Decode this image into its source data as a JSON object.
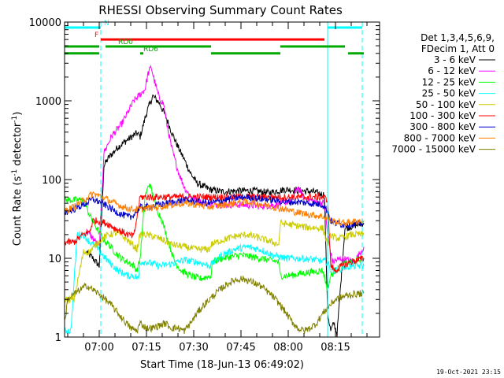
{
  "chart_data": {
    "type": "line",
    "title": "RHESSI Observing Summary Count Rates",
    "xlabel": "Start Time (18-Jun-13 06:49:02)",
    "ylabel_main": "Count Rate (s",
    "ylabel_sup1": "-1",
    "ylabel_mid": " detector",
    "ylabel_sup2": "-1",
    "ylabel_end": ")",
    "x_unit": "minutes since 06:49:02",
    "xlim": [
      0,
      100
    ],
    "ylim": [
      1,
      10000
    ],
    "y_scale": "log",
    "x_ticks": [
      {
        "value": 11,
        "label": "07:00"
      },
      {
        "value": 26,
        "label": "07:15"
      },
      {
        "value": 41,
        "label": "07:30"
      },
      {
        "value": 56,
        "label": "07:45"
      },
      {
        "value": 71,
        "label": "08:00"
      },
      {
        "value": 86,
        "label": "08:15"
      }
    ],
    "y_ticks": [
      {
        "value": 1,
        "label": "1"
      },
      {
        "value": 10,
        "label": "10"
      },
      {
        "value": 100,
        "label": "100"
      },
      {
        "value": 1000,
        "label": "1000"
      },
      {
        "value": 10000,
        "label": "10000"
      }
    ],
    "legend_header": [
      "Det 1,3,4,5,6,9,",
      "FDecim 1, Att 0"
    ],
    "legend_placement": "right",
    "footer_timestamp": "19-Oct-2021 23:15",
    "vertical_markers": [
      {
        "x": 11.5,
        "color": "#00ffff",
        "style": "dashed"
      },
      {
        "x": 83.5,
        "color": "#00ffff",
        "style": "solid"
      },
      {
        "x": 94.5,
        "color": "#00ffff",
        "style": "dashed"
      }
    ],
    "flag_bars": [
      {
        "label": "N",
        "color": "#00ffff",
        "y": 8500,
        "segments": [
          [
            0,
            11.5
          ],
          [
            83.5,
            94.5
          ]
        ],
        "label_x": 12.5
      },
      {
        "label": "F",
        "color": "#ff0000",
        "y": 6000,
        "segments": [
          [
            11.5,
            82.5
          ]
        ],
        "label_x": 9.5
      },
      {
        "label": "RD0",
        "color": "#00aa00",
        "y": 4900,
        "segments": [
          [
            0,
            11
          ],
          [
            13,
            46.5
          ],
          [
            68.5,
            89
          ]
        ],
        "label_x": 17
      },
      {
        "label": "RD6",
        "color": "#00aa00",
        "y": 4000,
        "segments": [
          [
            0,
            11
          ],
          [
            24,
            25
          ],
          [
            46.5,
            68.5
          ],
          [
            90,
            95
          ]
        ],
        "label_x": 25
      }
    ],
    "series": [
      {
        "name": "3 - 6 keV",
        "color": "#000000",
        "x": [
          7,
          9,
          11,
          12.5,
          14,
          17,
          20,
          23,
          24,
          26,
          28,
          30,
          32,
          34,
          36,
          38,
          40,
          42,
          46,
          50,
          55,
          60,
          65,
          70,
          75,
          79,
          81,
          82.5,
          83.5,
          84.5,
          85.5,
          86.5,
          89,
          92,
          95
        ],
        "y": [
          12,
          10,
          8,
          150,
          190,
          260,
          320,
          390,
          350,
          700,
          1150,
          950,
          650,
          400,
          260,
          180,
          120,
          90,
          75,
          70,
          72,
          72,
          68,
          75,
          72,
          70,
          66,
          64,
          2,
          1.2,
          1.5,
          1.1,
          24,
          26,
          28
        ]
      },
      {
        "name": "6 - 12 keV",
        "color": "#ff00ff",
        "x": [
          7,
          9,
          11,
          12.5,
          15,
          18,
          20,
          22,
          24,
          25.5,
          26.5,
          27.5,
          28.5,
          30,
          31.5,
          32.5,
          34,
          36,
          38,
          40,
          44,
          50,
          56,
          62,
          68,
          72,
          74,
          76,
          80,
          82.5,
          83.5,
          85,
          88,
          92,
          95
        ],
        "y": [
          22,
          18,
          14,
          220,
          360,
          500,
          700,
          1000,
          1200,
          1400,
          2200,
          2700,
          1800,
          1100,
          900,
          500,
          250,
          130,
          80,
          60,
          50,
          48,
          48,
          46,
          48,
          55,
          80,
          58,
          52,
          50,
          20,
          9,
          10,
          9,
          14
        ]
      },
      {
        "name": "12 - 25 keV",
        "color": "#00ff00",
        "x": [
          0,
          3,
          6,
          8,
          10,
          12,
          14,
          16,
          18,
          20,
          22,
          23,
          24,
          25.5,
          27,
          29,
          31,
          33,
          35,
          37,
          40,
          43,
          46.5,
          47,
          50,
          56,
          62,
          68,
          68.5,
          71,
          76,
          82,
          83.5,
          84.5,
          86,
          88,
          91,
          95
        ],
        "y": [
          55,
          55,
          55,
          35,
          25,
          18,
          15,
          12,
          10,
          9,
          8,
          7,
          10,
          60,
          90,
          45,
          30,
          16,
          9,
          7,
          6,
          5.5,
          6,
          9,
          10,
          11,
          10,
          9,
          6,
          6,
          6.5,
          7,
          4,
          6,
          7,
          8,
          9,
          10
        ]
      },
      {
        "name": "25 - 50 keV",
        "color": "#00ffff",
        "x": [
          0,
          2,
          4,
          6,
          8,
          10,
          12,
          14,
          17,
          20,
          22,
          23.5,
          24,
          26,
          30,
          34,
          38,
          42,
          46,
          50,
          54,
          58,
          62,
          66,
          70,
          75,
          80,
          83.5,
          84.5,
          86,
          88,
          91,
          95
        ],
        "y": [
          1.2,
          1.2,
          20,
          20,
          16,
          14,
          11,
          9,
          7,
          6,
          6,
          5.5,
          9,
          9,
          8,
          8.5,
          9.5,
          9,
          8,
          11,
          13,
          14,
          13,
          11,
          10,
          10,
          9.5,
          9,
          7,
          7,
          7.5,
          8,
          8
        ]
      },
      {
        "name": "50 - 100 keV",
        "color": "#cccc00",
        "x": [
          0,
          3,
          6,
          8,
          10,
          12,
          14,
          17,
          20,
          23,
          24,
          26,
          30,
          34,
          38,
          42,
          46,
          46.5,
          50,
          54,
          58,
          62,
          66,
          68,
          68.5,
          71,
          76,
          82,
          83.5,
          84.5,
          86,
          88,
          91,
          95
        ],
        "y": [
          3,
          3,
          12,
          12,
          15,
          18,
          20,
          21,
          17,
          13,
          20,
          20,
          18,
          15,
          14,
          13,
          13,
          15,
          17,
          19,
          20,
          18,
          16,
          15,
          28,
          27,
          25,
          24,
          15,
          20,
          18,
          18,
          20,
          20
        ]
      },
      {
        "name": "100 - 300 keV",
        "color": "#ff0000",
        "x": [
          0,
          3,
          6,
          8,
          9,
          10,
          12,
          14,
          16,
          18,
          20,
          22,
          24,
          26,
          30,
          34,
          38,
          40,
          44,
          48,
          52,
          56,
          60,
          64,
          68,
          72,
          78,
          82,
          83.5,
          84.5,
          86,
          88,
          91,
          95
        ],
        "y": [
          16,
          16,
          20,
          22,
          30,
          30,
          29,
          27,
          24,
          22,
          20,
          19,
          60,
          60,
          60,
          60,
          60,
          60,
          60,
          60,
          60,
          60,
          60,
          60,
          60,
          60,
          60,
          60,
          55,
          8,
          7,
          8,
          9,
          10
        ]
      },
      {
        "name": "300 - 800 keV",
        "color": "#0000cc",
        "x": [
          0,
          3,
          6,
          9,
          12,
          15,
          18,
          21,
          24,
          26,
          30,
          34,
          38,
          42,
          46,
          50,
          54,
          58,
          62,
          66,
          70,
          74,
          78,
          82,
          83.5,
          84.5,
          86,
          88,
          91,
          95
        ],
        "y": [
          38,
          42,
          48,
          56,
          50,
          42,
          36,
          33,
          44,
          45,
          48,
          51,
          55,
          52,
          50,
          54,
          58,
          60,
          57,
          55,
          52,
          52,
          50,
          48,
          40,
          30,
          28,
          27,
          27,
          28
        ]
      },
      {
        "name": "800 - 7000 keV",
        "color": "#ff8000",
        "x": [
          0,
          3,
          6,
          9,
          12,
          15,
          18,
          21,
          24,
          26,
          30,
          34,
          38,
          42,
          46,
          50,
          54,
          58,
          62,
          66,
          70,
          74,
          78,
          82,
          83.5,
          84.5,
          86,
          88,
          91,
          95
        ],
        "y": [
          40,
          45,
          55,
          66,
          60,
          52,
          46,
          42,
          42,
          43,
          45,
          48,
          50,
          48,
          45,
          47,
          50,
          52,
          49,
          45,
          42,
          38,
          36,
          34,
          32,
          30,
          29,
          28,
          29,
          30
        ]
      },
      {
        "name": "7000 - 15000 keV",
        "color": "#808000",
        "x": [
          0,
          1,
          3,
          5,
          7,
          9,
          11,
          13,
          15,
          17,
          19,
          21,
          23,
          24,
          26,
          28,
          30,
          32,
          34,
          36,
          38,
          40,
          42,
          44,
          46,
          48,
          50,
          52,
          54,
          56,
          58,
          60,
          62,
          64,
          66,
          68,
          70,
          72,
          74,
          76,
          78,
          80,
          82,
          84,
          86,
          88,
          90,
          92,
          95
        ],
        "y": [
          1.5,
          3,
          3.5,
          4,
          4.5,
          4,
          3.5,
          3,
          2.5,
          2,
          1.6,
          1.3,
          1.2,
          1.5,
          1.3,
          1.3,
          1.4,
          1.5,
          1.3,
          1.3,
          1.2,
          1.5,
          2,
          2.5,
          3,
          3.6,
          4.2,
          4.8,
          5.3,
          5.5,
          5.3,
          4.9,
          4.5,
          3.9,
          3.3,
          2.7,
          2.1,
          1.6,
          1.3,
          1.2,
          1.3,
          1.5,
          2,
          2.5,
          3,
          3.2,
          3.4,
          3.5,
          3.6
        ]
      }
    ]
  }
}
